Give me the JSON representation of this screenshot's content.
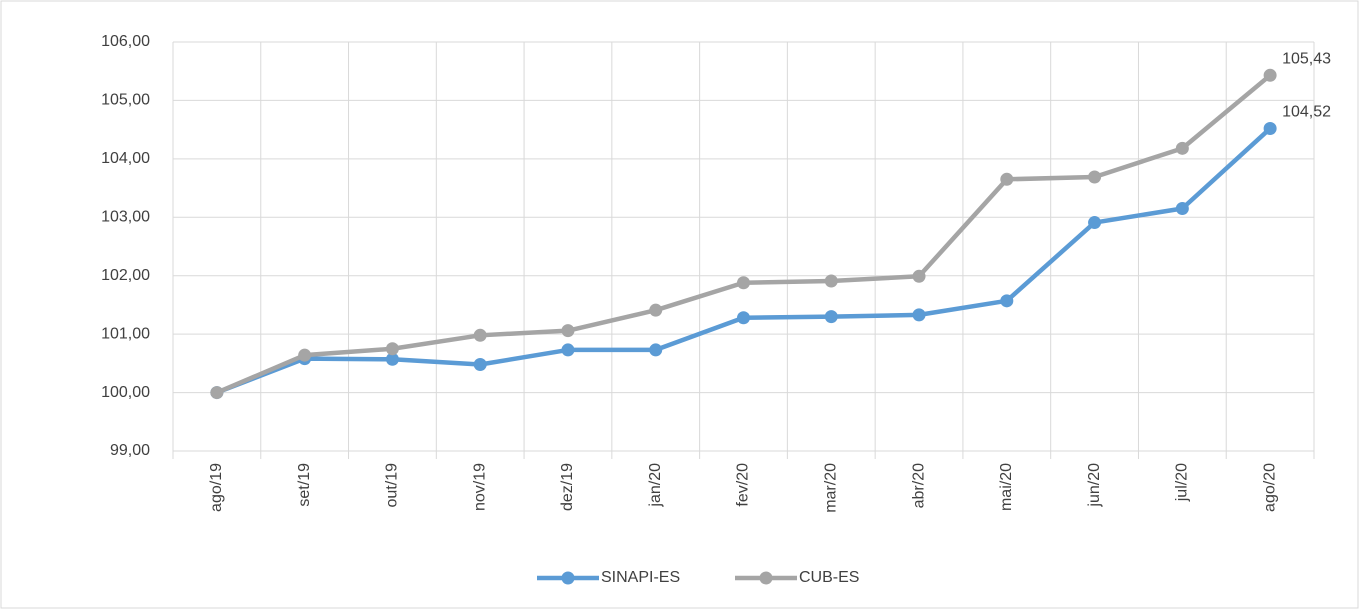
{
  "chart_data": {
    "type": "line",
    "categories": [
      "ago/19",
      "set/19",
      "out/19",
      "nov/19",
      "dez/19",
      "jan/20",
      "fev/20",
      "mar/20",
      "abr/20",
      "mai/20",
      "jun/20",
      "jul/20",
      "ago/20"
    ],
    "series": [
      {
        "name": "SINAPI-ES",
        "color": "#5b9bd5",
        "values": [
          100.0,
          100.58,
          100.57,
          100.48,
          100.73,
          100.73,
          101.28,
          101.3,
          101.33,
          101.57,
          102.91,
          103.15,
          104.52
        ],
        "value_labels": [
          null,
          null,
          null,
          null,
          null,
          null,
          null,
          null,
          null,
          null,
          null,
          null,
          "104,52"
        ]
      },
      {
        "name": "CUB-ES",
        "color": "#a5a5a5",
        "values": [
          100.0,
          100.64,
          100.75,
          100.98,
          101.06,
          101.41,
          101.88,
          101.91,
          101.99,
          103.65,
          103.69,
          104.18,
          105.43
        ],
        "value_labels": [
          null,
          null,
          null,
          null,
          null,
          null,
          null,
          null,
          null,
          null,
          null,
          null,
          "105,43"
        ]
      }
    ],
    "ylim": [
      99,
      106
    ],
    "yticks": [
      {
        "value": 99,
        "label": "99,00"
      },
      {
        "value": 100,
        "label": "100,00"
      },
      {
        "value": 101,
        "label": "101,00"
      },
      {
        "value": 102,
        "label": "102,00"
      },
      {
        "value": 103,
        "label": "103,00"
      },
      {
        "value": 104,
        "label": "104,00"
      },
      {
        "value": 105,
        "label": "105,00"
      },
      {
        "value": 106,
        "label": "106,00"
      }
    ],
    "grid": true,
    "legend": "bottom"
  }
}
